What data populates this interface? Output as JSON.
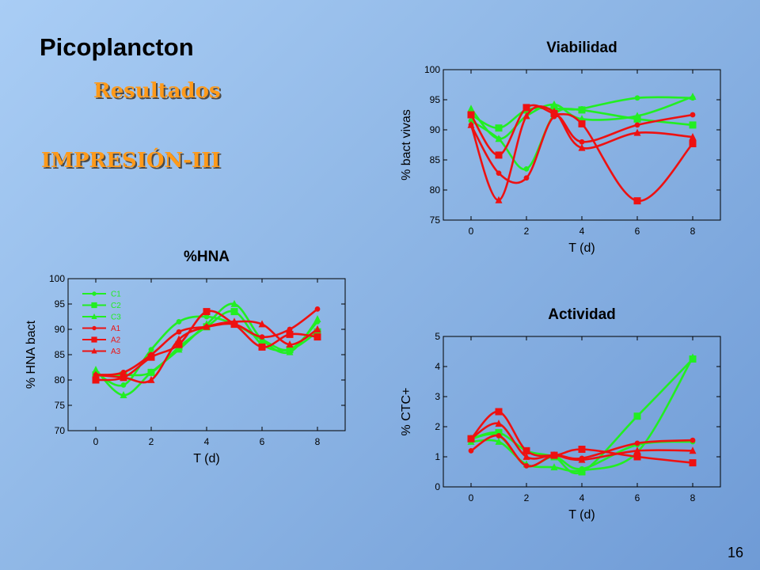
{
  "slide": {
    "title": "Picoplancton",
    "subtitle": "Resultados",
    "heading": "IMPRESIÓN-III",
    "page_number": "16"
  },
  "colors": {
    "green": "#22ee22",
    "red": "#ee1111",
    "subtitle": "#ff9a1a"
  },
  "chart_data": [
    {
      "id": "viabilidad",
      "type": "line",
      "title": "Viabilidad",
      "xlabel": "T (d)",
      "ylabel": "% bact vivas",
      "xlim": [
        -1,
        9
      ],
      "ylim": [
        75,
        100
      ],
      "xticks": [
        0,
        2,
        4,
        6,
        8
      ],
      "yticks": [
        75,
        80,
        85,
        90,
        95,
        100
      ],
      "grid": false,
      "series": [
        {
          "name": "C1",
          "color": "#22ee22",
          "marker": "circle",
          "x": [
            0,
            1,
            2,
            3,
            4,
            6,
            8
          ],
          "y": [
            91.5,
            88.5,
            83.5,
            92.5,
            93.5,
            95.3,
            95.3
          ]
        },
        {
          "name": "C2",
          "color": "#22ee22",
          "marker": "square",
          "x": [
            0,
            1,
            2,
            3,
            4,
            6,
            8
          ],
          "y": [
            92.5,
            90.3,
            93.3,
            93.5,
            93.3,
            91.8,
            90.8
          ]
        },
        {
          "name": "C3",
          "color": "#22ee22",
          "marker": "triangle",
          "x": [
            0,
            1,
            2,
            3,
            4,
            6,
            8
          ],
          "y": [
            93.5,
            88.5,
            92.3,
            94.2,
            91.8,
            92.3,
            95.5
          ]
        },
        {
          "name": "A1",
          "color": "#ee1111",
          "marker": "circle",
          "x": [
            0,
            1,
            2,
            3,
            4,
            6,
            8
          ],
          "y": [
            90.8,
            82.8,
            82.0,
            92.2,
            88.0,
            90.8,
            92.5
          ]
        },
        {
          "name": "A2",
          "color": "#ee1111",
          "marker": "square",
          "x": [
            0,
            1,
            2,
            3,
            4,
            6,
            8
          ],
          "y": [
            92.5,
            85.8,
            93.7,
            92.7,
            91.0,
            78.2,
            87.7
          ]
        },
        {
          "name": "A3",
          "color": "#ee1111",
          "marker": "triangle",
          "x": [
            0,
            1,
            2,
            3,
            4,
            6,
            8
          ],
          "y": [
            90.8,
            78.3,
            92.3,
            93.0,
            87.0,
            89.5,
            88.8
          ]
        }
      ]
    },
    {
      "id": "hna",
      "type": "line",
      "title": "%HNA",
      "xlabel": "T (d)",
      "ylabel": "% HNA bact",
      "xlim": [
        -1,
        9
      ],
      "ylim": [
        70,
        100
      ],
      "xticks": [
        0,
        2,
        4,
        6,
        8
      ],
      "yticks": [
        70,
        75,
        80,
        85,
        90,
        95,
        100
      ],
      "grid": false,
      "legend": "top-left",
      "series": [
        {
          "name": "C1",
          "color": "#22ee22",
          "marker": "circle",
          "x": [
            0,
            1,
            2,
            3,
            4,
            5,
            6,
            7,
            8
          ],
          "y": [
            81.5,
            79.0,
            86.0,
            91.5,
            92.5,
            91.0,
            88.0,
            86.0,
            91.5
          ]
        },
        {
          "name": "C2",
          "color": "#22ee22",
          "marker": "square",
          "x": [
            0,
            1,
            2,
            3,
            4,
            5,
            6,
            7,
            8
          ],
          "y": [
            81.0,
            81.0,
            81.5,
            86.5,
            90.5,
            93.5,
            87.0,
            86.0,
            89.5
          ]
        },
        {
          "name": "C3",
          "color": "#22ee22",
          "marker": "triangle",
          "x": [
            0,
            1,
            2,
            3,
            4,
            5,
            6,
            7,
            8
          ],
          "y": [
            82.0,
            77.0,
            81.5,
            86.0,
            91.0,
            95.0,
            88.0,
            85.5,
            92.0
          ]
        },
        {
          "name": "A1",
          "color": "#ee1111",
          "marker": "circle",
          "x": [
            0,
            1,
            2,
            3,
            4,
            5,
            6,
            7,
            8
          ],
          "y": [
            81.0,
            81.5,
            85.0,
            89.5,
            90.5,
            91.0,
            88.5,
            90.0,
            94.0
          ]
        },
        {
          "name": "A2",
          "color": "#ee1111",
          "marker": "square",
          "x": [
            0,
            1,
            2,
            3,
            4,
            5,
            6,
            7,
            8
          ],
          "y": [
            80.0,
            80.5,
            84.5,
            87.0,
            93.5,
            91.0,
            86.5,
            89.0,
            88.5
          ]
        },
        {
          "name": "A3",
          "color": "#ee1111",
          "marker": "triangle",
          "x": [
            0,
            1,
            2,
            3,
            4,
            5,
            6,
            7,
            8
          ],
          "y": [
            81.0,
            80.5,
            80.0,
            88.0,
            90.5,
            91.5,
            91.0,
            87.0,
            90.0
          ]
        }
      ]
    },
    {
      "id": "actividad",
      "type": "line",
      "title": "Actividad",
      "xlabel": "T (d)",
      "ylabel": "% CTC+",
      "xlim": [
        -1,
        9
      ],
      "ylim": [
        0,
        5
      ],
      "xticks": [
        0,
        2,
        4,
        6,
        8
      ],
      "yticks": [
        0,
        1,
        2,
        3,
        4,
        5
      ],
      "grid": false,
      "series": [
        {
          "name": "C1",
          "color": "#22ee22",
          "marker": "circle",
          "x": [
            0,
            1,
            2,
            3,
            4,
            6,
            8
          ],
          "y": [
            1.6,
            1.7,
            0.7,
            1.0,
            0.6,
            1.4,
            1.5
          ]
        },
        {
          "name": "C2",
          "color": "#22ee22",
          "marker": "square",
          "x": [
            0,
            1,
            2,
            3,
            4,
            6,
            8
          ],
          "y": [
            1.6,
            1.8,
            1.2,
            1.0,
            0.5,
            2.35,
            4.25
          ]
        },
        {
          "name": "C3",
          "color": "#22ee22",
          "marker": "triangle",
          "x": [
            0,
            1,
            2,
            3,
            4,
            6,
            8
          ],
          "y": [
            1.5,
            1.5,
            0.75,
            0.65,
            0.55,
            1.15,
            4.3
          ]
        },
        {
          "name": "A1",
          "color": "#ee1111",
          "marker": "circle",
          "x": [
            0,
            1,
            2,
            3,
            4,
            6,
            8
          ],
          "y": [
            1.2,
            1.7,
            0.7,
            1.05,
            0.95,
            1.45,
            1.55
          ]
        },
        {
          "name": "A2",
          "color": "#ee1111",
          "marker": "square",
          "x": [
            0,
            1,
            2,
            3,
            4,
            6,
            8
          ],
          "y": [
            1.6,
            2.5,
            1.2,
            1.05,
            1.25,
            1.0,
            0.8
          ]
        },
        {
          "name": "A3",
          "color": "#ee1111",
          "marker": "triangle",
          "x": [
            0,
            1,
            2,
            3,
            4,
            6,
            8
          ],
          "y": [
            1.6,
            2.1,
            1.0,
            1.05,
            0.9,
            1.2,
            1.2
          ]
        }
      ]
    }
  ]
}
